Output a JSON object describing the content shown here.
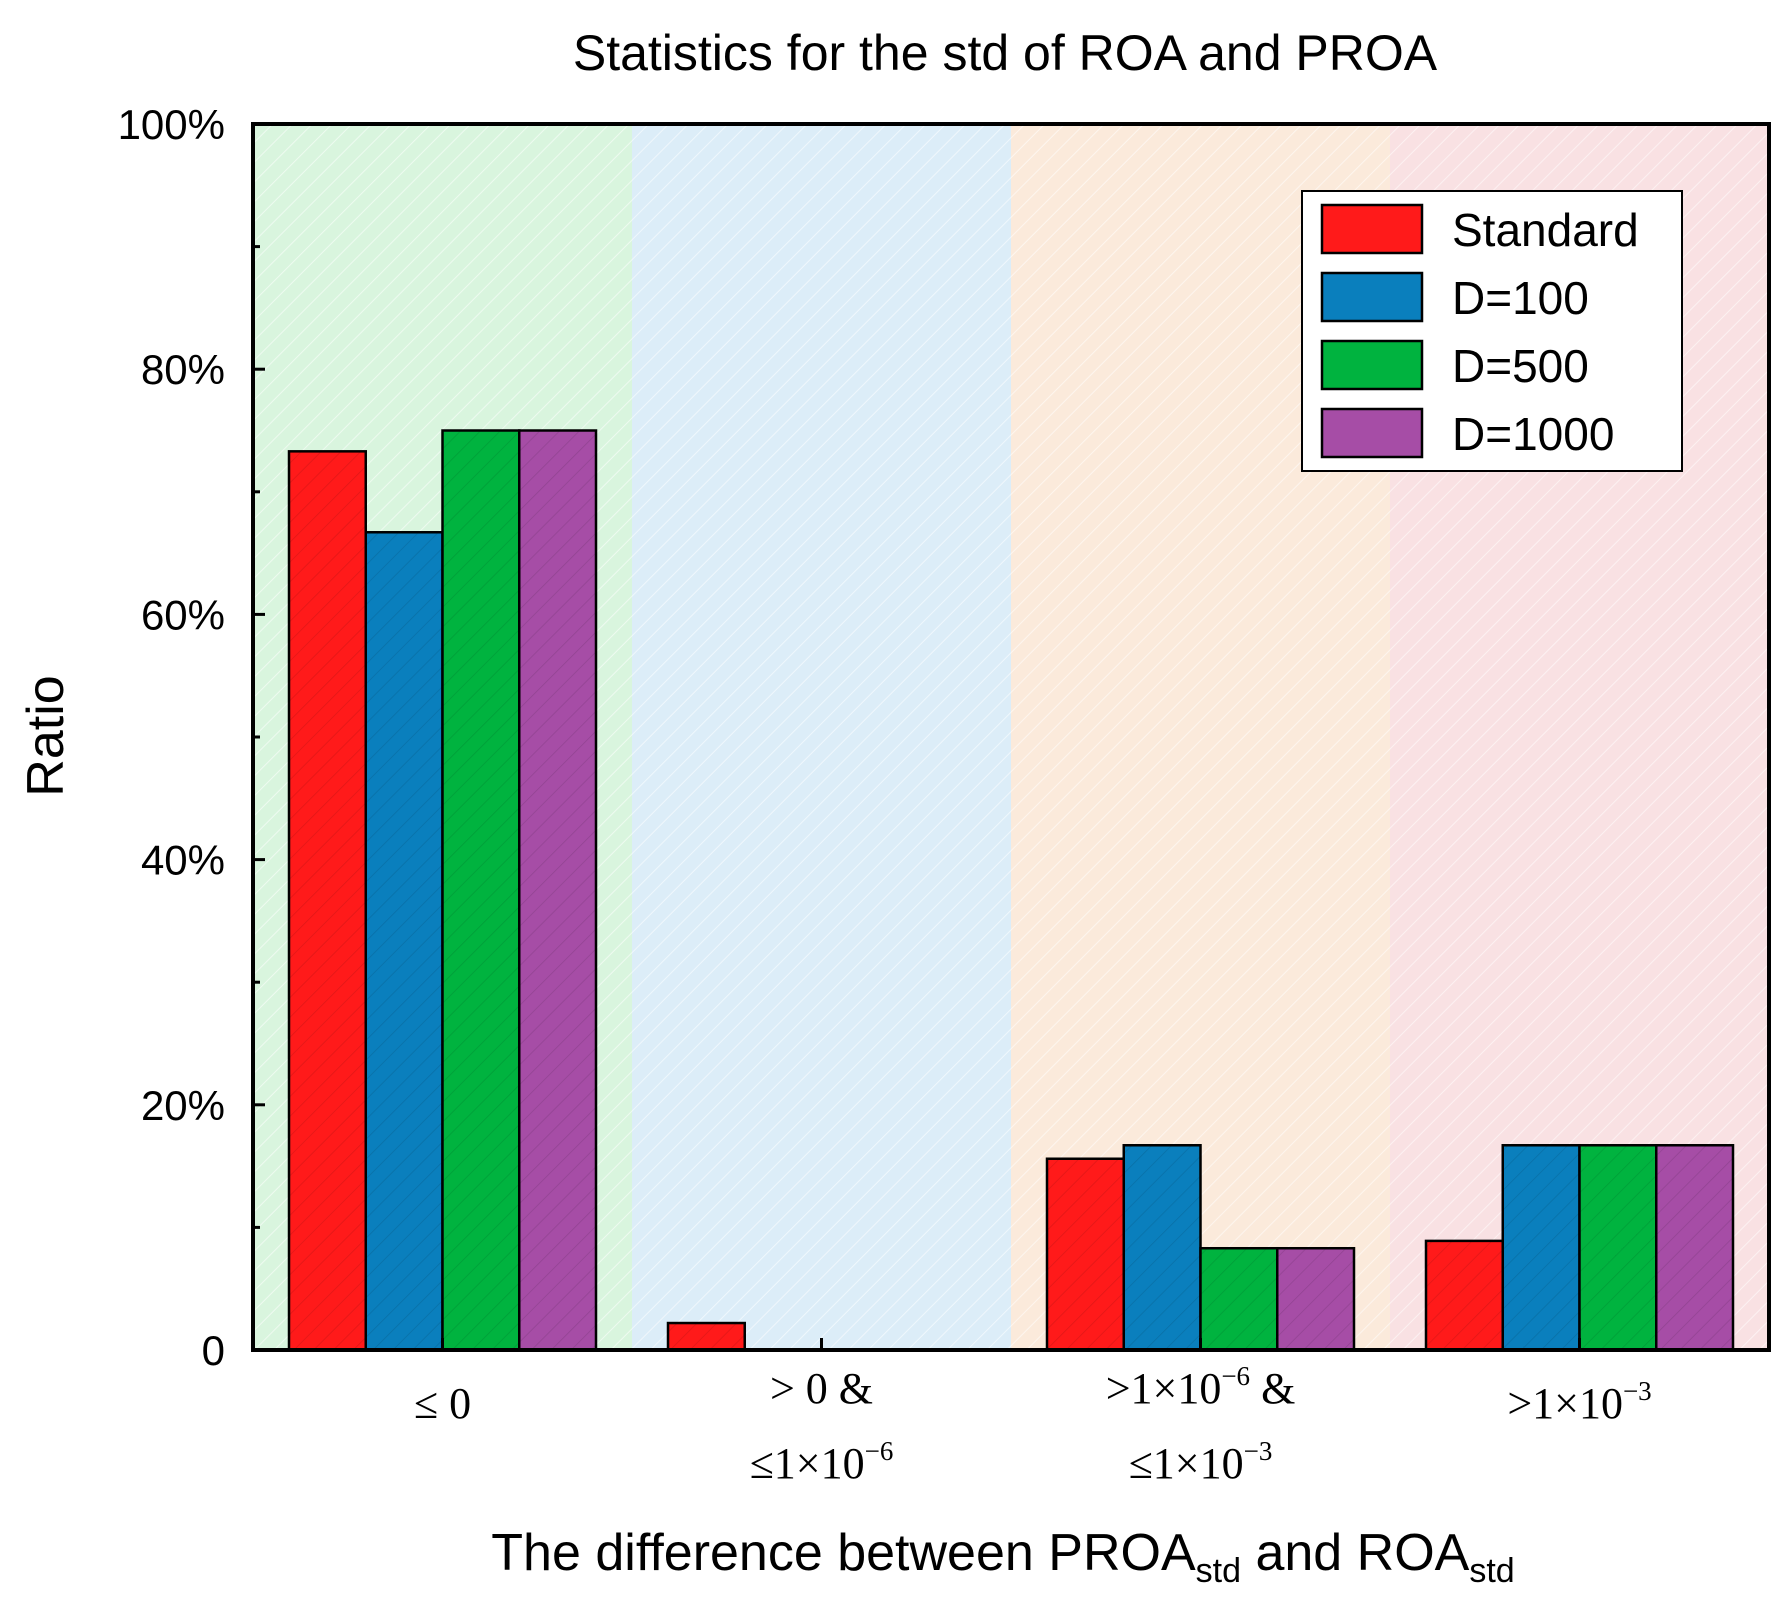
{
  "chart_data": {
    "type": "bar",
    "title": "Statistics for the std of ROA and PROA",
    "ylabel": "Ratio",
    "xlabel": {
      "main": "The difference between PROA",
      "sub1": "std",
      "mid": " and ROA",
      "sub2": "std"
    },
    "ylim": [
      0,
      100
    ],
    "yticks": [
      {
        "value": 0,
        "label": "0"
      },
      {
        "value": 20,
        "label": "20%"
      },
      {
        "value": 40,
        "label": "40%"
      },
      {
        "value": 60,
        "label": "60%"
      },
      {
        "value": 80,
        "label": "80%"
      },
      {
        "value": 100,
        "label": "100%"
      }
    ],
    "y_minor_ticks": [
      10,
      30,
      50,
      70,
      90
    ],
    "categories": [
      {
        "line1": [
          "≤ 0"
        ],
        "line2": null
      },
      {
        "line1": [
          "> 0 &"
        ],
        "line2": [
          "≤1×10",
          "−6"
        ]
      },
      {
        "line1": [
          ">1×10",
          "−6",
          " &"
        ],
        "line2": [
          "≤1×10",
          "−3"
        ]
      },
      {
        "line1": [
          ">1×10",
          "−3"
        ],
        "line2": null
      }
    ],
    "category_backgrounds": [
      "#d9f5de",
      "#dcedf8",
      "#fbeadb",
      "#f9e1e3"
    ],
    "series": [
      {
        "name": "Standard",
        "color": "#ff1a1a",
        "values": [
          73.3,
          2.2,
          15.6,
          8.9
        ]
      },
      {
        "name": "D=100",
        "color": "#0a7fbd",
        "values": [
          66.7,
          0,
          16.7,
          16.7
        ]
      },
      {
        "name": "D=500",
        "color": "#00b33f",
        "values": [
          75.0,
          0,
          8.3,
          16.7
        ]
      },
      {
        "name": "D=1000",
        "color": "#a64da6",
        "values": [
          75.0,
          0,
          8.3,
          16.7
        ]
      }
    ],
    "legend_position": "top-right",
    "grid": false
  }
}
